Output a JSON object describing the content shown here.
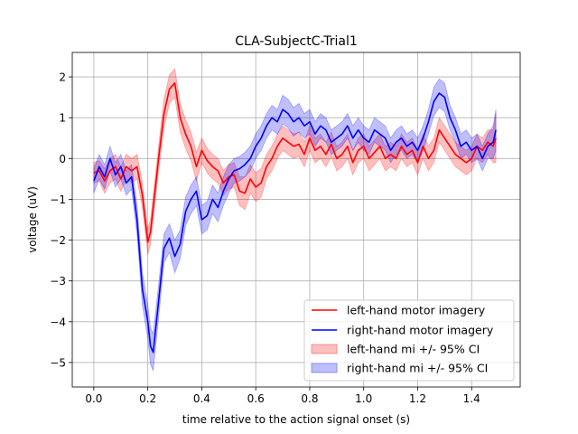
{
  "chart_data": {
    "type": "line",
    "title": "CLA-SubjectC-Trial1",
    "xlabel": "time relative to the action signal onset (s)",
    "ylabel": "voltage (uV)",
    "xlim": [
      -0.08,
      1.58
    ],
    "ylim": [
      -5.6,
      2.6
    ],
    "xticks": [
      0.0,
      0.2,
      0.4,
      0.6,
      0.8,
      1.0,
      1.2,
      1.4
    ],
    "xtick_labels": [
      "0.0",
      "0.2",
      "0.4",
      "0.6",
      "0.8",
      "1.0",
      "1.2",
      "1.4"
    ],
    "yticks": [
      -5,
      -4,
      -3,
      -2,
      -1,
      0,
      1,
      2
    ],
    "ytick_labels": [
      "−5",
      "−4",
      "−3",
      "−2",
      "−1",
      "0",
      "1",
      "2"
    ],
    "grid": true,
    "legend_position": "lower-right",
    "x": [
      0.0,
      0.02,
      0.04,
      0.06,
      0.08,
      0.1,
      0.12,
      0.14,
      0.16,
      0.18,
      0.2,
      0.21,
      0.22,
      0.24,
      0.26,
      0.28,
      0.3,
      0.32,
      0.34,
      0.36,
      0.38,
      0.4,
      0.42,
      0.44,
      0.46,
      0.48,
      0.5,
      0.52,
      0.54,
      0.56,
      0.58,
      0.6,
      0.62,
      0.64,
      0.66,
      0.68,
      0.7,
      0.72,
      0.74,
      0.76,
      0.78,
      0.8,
      0.82,
      0.84,
      0.86,
      0.88,
      0.9,
      0.92,
      0.94,
      0.96,
      0.98,
      1.0,
      1.02,
      1.04,
      1.06,
      1.08,
      1.1,
      1.12,
      1.14,
      1.16,
      1.18,
      1.2,
      1.22,
      1.24,
      1.26,
      1.28,
      1.3,
      1.32,
      1.34,
      1.36,
      1.38,
      1.4,
      1.42,
      1.44,
      1.46,
      1.48,
      1.49
    ],
    "series": [
      {
        "name": "left-hand motor imagery",
        "ci_name": "left-hand mi +/- 95% CI",
        "color": "#ff0000",
        "values": [
          -0.35,
          -0.3,
          -0.55,
          -0.3,
          -0.2,
          -0.5,
          -0.2,
          -0.3,
          -0.2,
          -0.9,
          -2.05,
          -1.8,
          -1.2,
          0.0,
          1.1,
          1.7,
          1.85,
          1.0,
          0.6,
          0.3,
          -0.2,
          0.2,
          -0.05,
          -0.2,
          -0.3,
          -0.6,
          -0.45,
          -0.4,
          -0.8,
          -0.85,
          -0.5,
          -0.7,
          -0.6,
          -0.2,
          0.0,
          0.3,
          0.5,
          0.4,
          0.3,
          0.35,
          0.1,
          0.5,
          0.2,
          0.3,
          0.1,
          0.35,
          0.0,
          0.1,
          0.3,
          -0.1,
          0.2,
          0.3,
          0.0,
          0.15,
          0.3,
          0.0,
          0.1,
          0.0,
          0.3,
          0.1,
          0.2,
          -0.1,
          0.3,
          0.0,
          0.2,
          0.7,
          0.5,
          0.3,
          0.1,
          0.0,
          -0.1,
          0.0,
          0.3,
          0.2,
          0.4,
          0.3,
          0.5
        ],
        "ci_halfwidth": [
          0.25,
          0.25,
          0.3,
          0.3,
          0.3,
          0.3,
          0.3,
          0.3,
          0.3,
          0.3,
          0.3,
          0.3,
          0.3,
          0.3,
          0.35,
          0.35,
          0.35,
          0.35,
          0.35,
          0.35,
          0.35,
          0.3,
          0.3,
          0.3,
          0.3,
          0.3,
          0.3,
          0.3,
          0.35,
          0.4,
          0.35,
          0.35,
          0.35,
          0.3,
          0.3,
          0.3,
          0.3,
          0.3,
          0.3,
          0.3,
          0.3,
          0.3,
          0.3,
          0.3,
          0.3,
          0.3,
          0.3,
          0.3,
          0.3,
          0.3,
          0.3,
          0.3,
          0.3,
          0.3,
          0.3,
          0.3,
          0.3,
          0.3,
          0.3,
          0.3,
          0.3,
          0.3,
          0.3,
          0.3,
          0.3,
          0.3,
          0.3,
          0.3,
          0.3,
          0.3,
          0.3,
          0.3,
          0.3,
          0.3,
          0.3,
          0.4,
          0.6
        ]
      },
      {
        "name": "right-hand motor imagery",
        "ci_name": "right-hand mi +/- 95% CI",
        "color": "#0000ff",
        "values": [
          -0.55,
          -0.2,
          -0.45,
          0.0,
          -0.4,
          -0.2,
          -0.6,
          -0.45,
          -1.5,
          -3.2,
          -4.0,
          -4.6,
          -4.75,
          -3.5,
          -2.2,
          -1.95,
          -2.4,
          -2.1,
          -1.3,
          -1.0,
          -0.8,
          -1.5,
          -1.4,
          -1.0,
          -1.2,
          -0.8,
          -0.5,
          -0.3,
          -0.25,
          -0.15,
          0.0,
          0.3,
          0.5,
          0.8,
          1.0,
          0.9,
          1.2,
          1.1,
          0.9,
          1.0,
          0.8,
          0.9,
          0.6,
          0.8,
          0.7,
          0.4,
          0.5,
          0.6,
          0.8,
          0.5,
          0.7,
          0.5,
          0.4,
          0.7,
          0.6,
          0.5,
          0.2,
          0.4,
          0.5,
          0.3,
          0.4,
          0.2,
          0.5,
          0.9,
          1.4,
          1.6,
          1.5,
          1.0,
          0.7,
          0.3,
          0.4,
          0.2,
          0.3,
          0.0,
          0.3,
          0.4,
          0.7
        ],
        "ci_halfwidth": [
          0.3,
          0.3,
          0.3,
          0.3,
          0.3,
          0.3,
          0.3,
          0.3,
          0.35,
          0.4,
          0.4,
          0.45,
          0.45,
          0.4,
          0.35,
          0.35,
          0.4,
          0.35,
          0.35,
          0.35,
          0.35,
          0.35,
          0.35,
          0.35,
          0.35,
          0.35,
          0.35,
          0.3,
          0.3,
          0.3,
          0.3,
          0.3,
          0.3,
          0.3,
          0.3,
          0.3,
          0.35,
          0.35,
          0.35,
          0.35,
          0.3,
          0.3,
          0.3,
          0.3,
          0.3,
          0.3,
          0.3,
          0.3,
          0.3,
          0.3,
          0.3,
          0.3,
          0.3,
          0.3,
          0.3,
          0.3,
          0.3,
          0.3,
          0.3,
          0.3,
          0.3,
          0.3,
          0.3,
          0.3,
          0.35,
          0.35,
          0.35,
          0.3,
          0.3,
          0.3,
          0.3,
          0.3,
          0.3,
          0.3,
          0.3,
          0.4,
          0.5
        ]
      }
    ]
  }
}
